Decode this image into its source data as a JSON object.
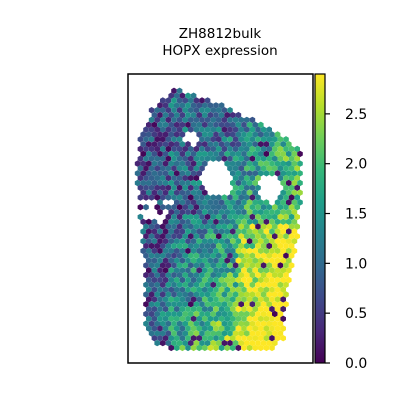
{
  "chart_data": {
    "type": "scatter",
    "title": "ZH8812bulk",
    "subtitle": "HOPX expression",
    "xlabel": "",
    "ylabel": "",
    "colorbar": {
      "colormap": "viridis",
      "range": [
        0.0,
        2.9
      ],
      "ticks": [
        0.0,
        0.5,
        1.0,
        1.5,
        2.0,
        2.5
      ],
      "tick_labels": [
        "0.0",
        "0.5",
        "1.0",
        "1.5",
        "2.0",
        "2.5"
      ]
    },
    "marker": "hexagon",
    "description": "Spatial spot map of HOPX expression; higher values concentrated in the lower-right region of the tissue.",
    "value_range_observed": [
      0.0,
      2.9
    ]
  },
  "colors": {
    "viridis": [
      "#440154",
      "#482878",
      "#3e4989",
      "#31688e",
      "#26828e",
      "#1f9e89",
      "#35b779",
      "#6ece58",
      "#b5de2b",
      "#fde725"
    ]
  }
}
